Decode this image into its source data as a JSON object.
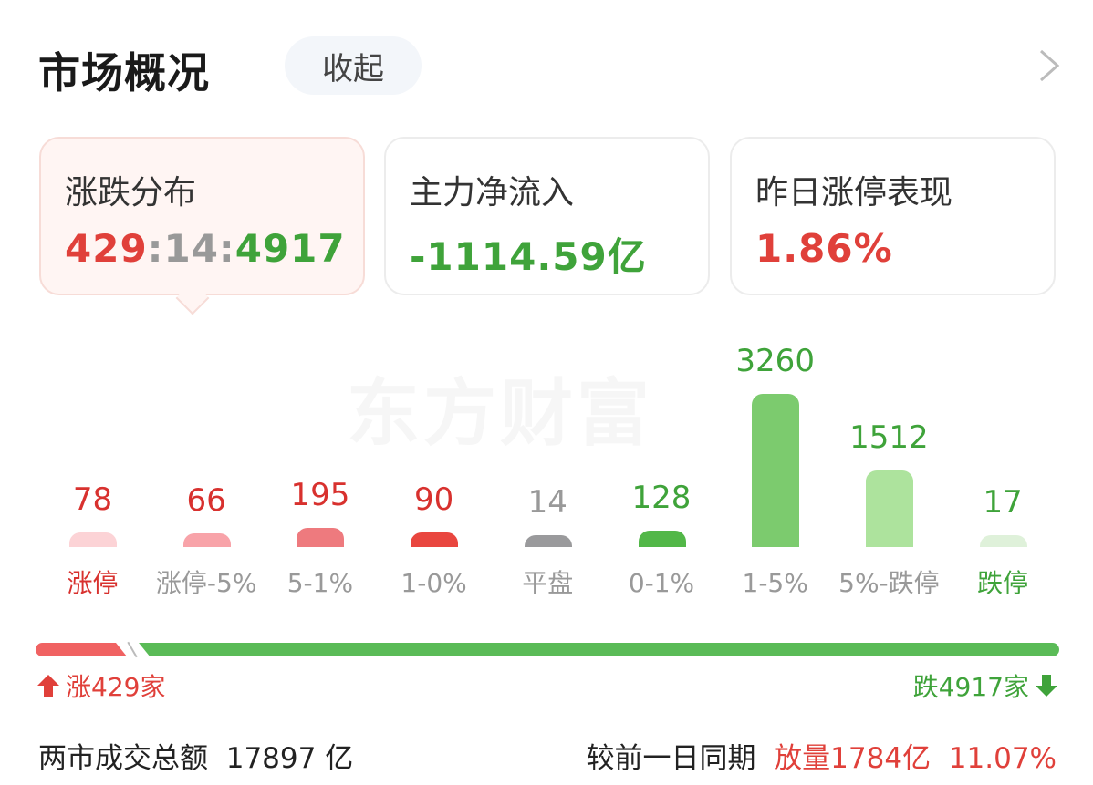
{
  "header": {
    "title": "市场概况",
    "collapse_label": "收起"
  },
  "cards": [
    {
      "label": "涨跌分布",
      "up": "429",
      "sep1": ":",
      "flat": "14",
      "sep2": ":",
      "down": "4917"
    },
    {
      "label": "主力净流入",
      "value": "-1114.59亿"
    },
    {
      "label": "昨日涨停表现",
      "value": "1.86%"
    }
  ],
  "watermark": "东方财富",
  "chart_data": {
    "type": "bar",
    "categories": [
      "涨停",
      "涨停-5%",
      "5-1%",
      "1-0%",
      "平盘",
      "0-1%",
      "1-5%",
      "5%-跌停",
      "跌停"
    ],
    "values": [
      78,
      66,
      195,
      90,
      14,
      128,
      3260,
      1512,
      17
    ],
    "bar_colors": [
      "#fcd3d6",
      "#f8a3a9",
      "#ee7a7e",
      "#e9463f",
      "#9a9a9c",
      "#52b748",
      "#7ccb6e",
      "#ade39d",
      "#dff1da"
    ],
    "value_colors": [
      "#d8312e",
      "#d8312e",
      "#d8312e",
      "#d8312e",
      "#999999",
      "#3fa33a",
      "#3fa33a",
      "#3fa33a",
      "#3fa33a"
    ],
    "label_colors": [
      "#d8312e",
      "#999999",
      "#999999",
      "#999999",
      "#999999",
      "#999999",
      "#999999",
      "#999999",
      "#3fa33a"
    ]
  },
  "summary": {
    "up_label": "涨429家",
    "down_label": "跌4917家",
    "up_count": 429,
    "down_count": 4917
  },
  "footer": {
    "turnover_label": "两市成交总额",
    "turnover_value": "17897 亿",
    "compare_label": "较前一日同期",
    "compare_change": "放量1784亿",
    "compare_pct": "11.07%"
  },
  "colors": {
    "up": "#e0403a",
    "down": "#3fa33a"
  }
}
